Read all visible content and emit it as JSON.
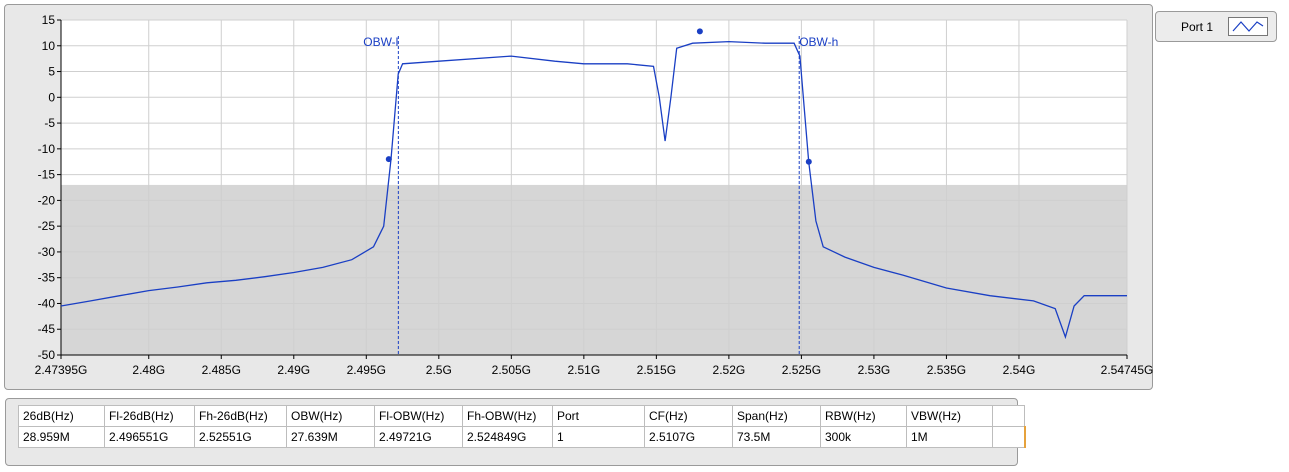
{
  "legend": {
    "label": "Port 1"
  },
  "chart_data": {
    "type": "line",
    "xlim": [
      2.47395,
      2.54745
    ],
    "ylim": [
      -50,
      15
    ],
    "x_ticks": [
      {
        "v": 2.47395,
        "label": "2.47395G"
      },
      {
        "v": 2.48,
        "label": "2.48G"
      },
      {
        "v": 2.485,
        "label": "2.485G"
      },
      {
        "v": 2.49,
        "label": "2.49G"
      },
      {
        "v": 2.495,
        "label": "2.495G"
      },
      {
        "v": 2.5,
        "label": "2.5G"
      },
      {
        "v": 2.505,
        "label": "2.505G"
      },
      {
        "v": 2.51,
        "label": "2.51G"
      },
      {
        "v": 2.515,
        "label": "2.515G"
      },
      {
        "v": 2.52,
        "label": "2.52G"
      },
      {
        "v": 2.525,
        "label": "2.525G"
      },
      {
        "v": 2.53,
        "label": "2.53G"
      },
      {
        "v": 2.535,
        "label": "2.535G"
      },
      {
        "v": 2.54,
        "label": "2.54G"
      },
      {
        "v": 2.54745,
        "label": "2.54745G"
      }
    ],
    "y_ticks": [
      15,
      10,
      5,
      0,
      -5,
      -10,
      -15,
      -20,
      -25,
      -30,
      -35,
      -40,
      -45,
      -50
    ],
    "grid": true,
    "shaded_region": {
      "y_from": -50,
      "y_to": -17
    },
    "series": [
      {
        "color": "#1a3fc4",
        "points": [
          [
            2.47395,
            -40.5
          ],
          [
            2.476,
            -39.5
          ],
          [
            2.478,
            -38.5
          ],
          [
            2.48,
            -37.5
          ],
          [
            2.482,
            -36.8
          ],
          [
            2.484,
            -36.0
          ],
          [
            2.486,
            -35.5
          ],
          [
            2.488,
            -34.8
          ],
          [
            2.49,
            -34.0
          ],
          [
            2.492,
            -33.0
          ],
          [
            2.494,
            -31.5
          ],
          [
            2.4955,
            -29.0
          ],
          [
            2.4962,
            -25.0
          ],
          [
            2.4967,
            -12.0
          ],
          [
            2.4972,
            4.5
          ],
          [
            2.4975,
            6.5
          ],
          [
            2.5,
            7.0
          ],
          [
            2.505,
            8.0
          ],
          [
            2.508,
            7.0
          ],
          [
            2.51,
            6.5
          ],
          [
            2.513,
            6.5
          ],
          [
            2.5148,
            6.0
          ],
          [
            2.5152,
            0.0
          ],
          [
            2.5156,
            -8.5
          ],
          [
            2.516,
            0.0
          ],
          [
            2.5164,
            9.5
          ],
          [
            2.5175,
            10.5
          ],
          [
            2.52,
            10.8
          ],
          [
            2.5225,
            10.5
          ],
          [
            2.5245,
            10.5
          ],
          [
            2.5249,
            8.0
          ],
          [
            2.5255,
            -12.5
          ],
          [
            2.526,
            -24.0
          ],
          [
            2.5265,
            -29.0
          ],
          [
            2.528,
            -31.0
          ],
          [
            2.53,
            -33.0
          ],
          [
            2.532,
            -34.5
          ],
          [
            2.535,
            -37.0
          ],
          [
            2.538,
            -38.5
          ],
          [
            2.541,
            -39.5
          ],
          [
            2.5425,
            -41.0
          ],
          [
            2.5432,
            -46.5
          ],
          [
            2.5438,
            -40.5
          ],
          [
            2.5445,
            -38.5
          ],
          [
            2.54745,
            -38.5
          ]
        ]
      }
    ],
    "cursors": [
      {
        "x": 2.49721,
        "label": "OBW-l"
      },
      {
        "x": 2.524849,
        "label": "OBW-h"
      }
    ],
    "markers": [
      [
        2.496551,
        -12.0
      ],
      [
        2.52551,
        -12.5
      ],
      [
        2.518,
        12.8
      ]
    ]
  },
  "table": {
    "headers": [
      "26dB(Hz)",
      "Fl-26dB(Hz)",
      "Fh-26dB(Hz)",
      "OBW(Hz)",
      "Fl-OBW(Hz)",
      "Fh-OBW(Hz)",
      "Port",
      "CF(Hz)",
      "Span(Hz)",
      "RBW(Hz)",
      "VBW(Hz)",
      ""
    ],
    "rows": [
      [
        "28.959M",
        "2.496551G",
        "2.52551G",
        "27.639M",
        "2.49721G",
        "2.524849G",
        "1",
        "2.5107G",
        "73.5M",
        "300k",
        "1M",
        ""
      ]
    ]
  }
}
